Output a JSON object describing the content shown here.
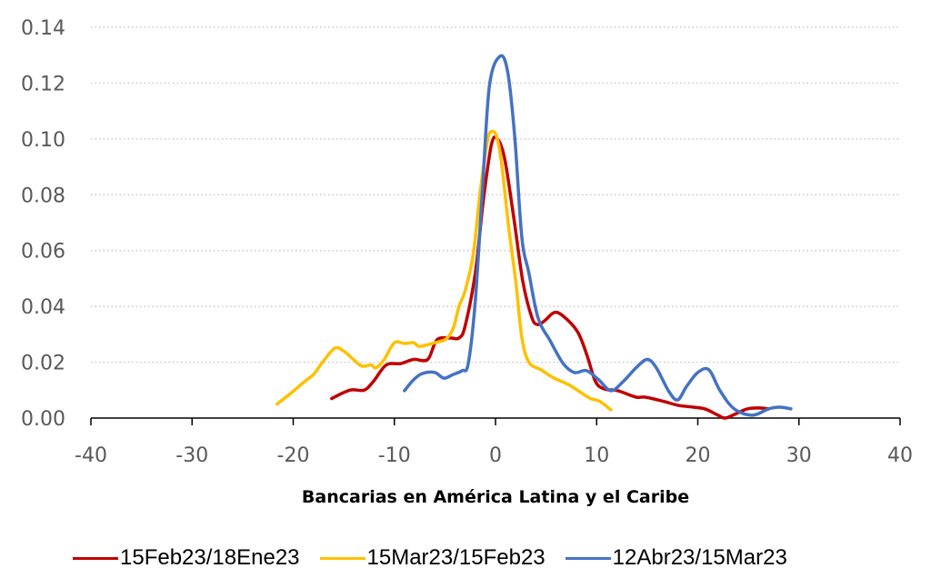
{
  "chart_data": {
    "type": "line",
    "title": "",
    "xlabel": "Bancarias en América Latina y el Caribe",
    "ylabel": "",
    "xlim": [
      -40,
      40
    ],
    "ylim": [
      0,
      0.14
    ],
    "x_ticks": [
      "-40",
      "-30",
      "-20",
      "-10",
      "0",
      "10",
      "20",
      "30",
      "40"
    ],
    "x_tick_values": [
      -40,
      -30,
      -20,
      -10,
      0,
      10,
      20,
      30,
      40
    ],
    "y_ticks": [
      "0.00",
      "0.02",
      "0.04",
      "0.06",
      "0.08",
      "0.10",
      "0.12",
      "0.14"
    ],
    "y_tick_values": [
      0,
      0.02,
      0.04,
      0.06,
      0.08,
      0.1,
      0.12,
      0.14
    ],
    "grid": "horizontal-dotted",
    "legend_position": "bottom",
    "series": [
      {
        "name": "15Feb23/18Ene23",
        "color": "#C00000",
        "points": [
          [
            -16.2,
            0.007
          ],
          [
            -14.4,
            0.01
          ],
          [
            -13,
            0.01
          ],
          [
            -12.1,
            0.013
          ],
          [
            -10.8,
            0.019
          ],
          [
            -9.4,
            0.0195
          ],
          [
            -8.1,
            0.021
          ],
          [
            -6.7,
            0.021
          ],
          [
            -5.8,
            0.028
          ],
          [
            -4.5,
            0.0287
          ],
          [
            -3.6,
            0.0287
          ],
          [
            -3,
            0.033
          ],
          [
            -2,
            0.052
          ],
          [
            -1.2,
            0.078
          ],
          [
            -0.4,
            0.098
          ],
          [
            0.2,
            0.1
          ],
          [
            0.9,
            0.093
          ],
          [
            1.8,
            0.072
          ],
          [
            2.7,
            0.049
          ],
          [
            3.6,
            0.036
          ],
          [
            4.2,
            0.0335
          ],
          [
            4.9,
            0.035
          ],
          [
            5.8,
            0.0378
          ],
          [
            6.7,
            0.0365
          ],
          [
            8.1,
            0.031
          ],
          [
            9,
            0.023
          ],
          [
            9.9,
            0.013
          ],
          [
            10.8,
            0.0104
          ],
          [
            12.1,
            0.0098
          ],
          [
            13.9,
            0.0075
          ],
          [
            14.8,
            0.0075
          ],
          [
            16.6,
            0.006
          ],
          [
            18,
            0.0046
          ],
          [
            19.3,
            0.004
          ],
          [
            20.7,
            0.0033
          ],
          [
            22,
            0.001
          ],
          [
            22.7,
            0.0
          ],
          [
            23.8,
            0.0016
          ],
          [
            24.9,
            0.0033
          ],
          [
            26.1,
            0.0036
          ],
          [
            27,
            0.0033
          ]
        ]
      },
      {
        "name": "15Mar23/15Feb23",
        "color": "#FFC000",
        "points": [
          [
            -21.6,
            0.005
          ],
          [
            -20.2,
            0.009
          ],
          [
            -18.9,
            0.013
          ],
          [
            -18,
            0.0156
          ],
          [
            -17.1,
            0.02
          ],
          [
            -15.9,
            0.025
          ],
          [
            -15,
            0.024
          ],
          [
            -13.9,
            0.0205
          ],
          [
            -13.2,
            0.0186
          ],
          [
            -12.3,
            0.019
          ],
          [
            -11.8,
            0.018
          ],
          [
            -11,
            0.021
          ],
          [
            -10,
            0.027
          ],
          [
            -9,
            0.0267
          ],
          [
            -8.1,
            0.027
          ],
          [
            -7.5,
            0.0257
          ],
          [
            -6,
            0.027
          ],
          [
            -4.9,
            0.0283
          ],
          [
            -4.2,
            0.032
          ],
          [
            -3.6,
            0.04
          ],
          [
            -3,
            0.0456
          ],
          [
            -2.2,
            0.0586
          ],
          [
            -1.5,
            0.0814
          ],
          [
            -0.8,
            0.0993
          ],
          [
            -0.4,
            0.1026
          ],
          [
            0.1,
            0.101
          ],
          [
            0.6,
            0.0912
          ],
          [
            1.3,
            0.0684
          ],
          [
            2,
            0.049
          ],
          [
            2.6,
            0.029
          ],
          [
            3.3,
            0.02
          ],
          [
            4.5,
            0.0173
          ],
          [
            5.8,
            0.0143
          ],
          [
            7.2,
            0.012
          ],
          [
            8.5,
            0.009
          ],
          [
            9.4,
            0.007
          ],
          [
            10.3,
            0.006
          ],
          [
            11.4,
            0.003
          ]
        ]
      },
      {
        "name": "12Abr23/15Mar23",
        "color": "#4472C4",
        "points": [
          [
            -9,
            0.0098
          ],
          [
            -8.1,
            0.0137
          ],
          [
            -7.2,
            0.016
          ],
          [
            -6,
            0.0163
          ],
          [
            -5.1,
            0.0143
          ],
          [
            -4.2,
            0.0156
          ],
          [
            -3.3,
            0.017
          ],
          [
            -2.7,
            0.0195
          ],
          [
            -2,
            0.042
          ],
          [
            -1.3,
            0.081
          ],
          [
            -0.6,
            0.119
          ],
          [
            0.45,
            0.1296
          ],
          [
            1.2,
            0.124
          ],
          [
            1.9,
            0.101
          ],
          [
            2.6,
            0.065
          ],
          [
            3.3,
            0.052
          ],
          [
            4.2,
            0.036
          ],
          [
            5.4,
            0.0277
          ],
          [
            6.7,
            0.0195
          ],
          [
            7.8,
            0.0163
          ],
          [
            9,
            0.017
          ],
          [
            10.2,
            0.0137
          ],
          [
            11.4,
            0.0098
          ],
          [
            12.6,
            0.013
          ],
          [
            13.9,
            0.018
          ],
          [
            15,
            0.021
          ],
          [
            15.9,
            0.018
          ],
          [
            17.1,
            0.0098
          ],
          [
            18,
            0.0065
          ],
          [
            18.9,
            0.0114
          ],
          [
            20,
            0.0163
          ],
          [
            21.1,
            0.0173
          ],
          [
            22.2,
            0.0098
          ],
          [
            23.6,
            0.0033
          ],
          [
            25.4,
            0.001
          ],
          [
            27,
            0.0033
          ],
          [
            28.1,
            0.0039
          ],
          [
            29.2,
            0.0033
          ]
        ]
      }
    ]
  }
}
